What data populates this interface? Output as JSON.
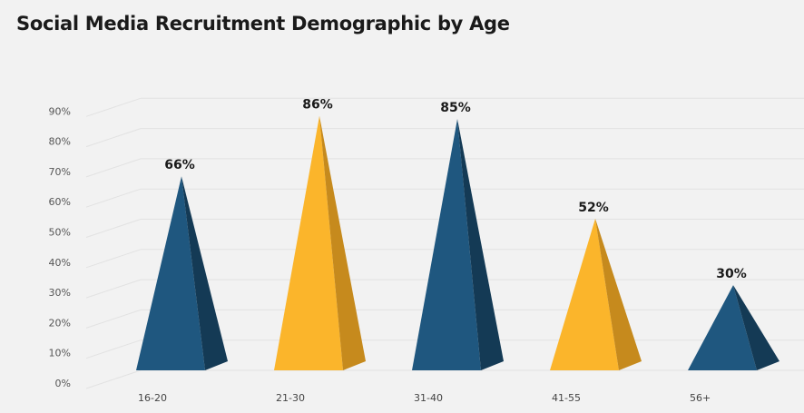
{
  "chart_data": {
    "type": "bar",
    "title": "Social Media Recruitment Demographic by Age",
    "categories": [
      "16-20",
      "21-30",
      "31-40",
      "41-55",
      "56+"
    ],
    "values": [
      66,
      86,
      85,
      52,
      30
    ],
    "value_labels": [
      "66%",
      "86%",
      "85%",
      "52%",
      "30%"
    ],
    "ylim": [
      0,
      90
    ],
    "yticks": [
      0,
      10,
      20,
      30,
      40,
      50,
      60,
      70,
      80,
      90
    ],
    "ytick_labels": [
      "0%",
      "10%",
      "20%",
      "30%",
      "40%",
      "50%",
      "60%",
      "70%",
      "80%",
      "90%"
    ],
    "grid": true,
    "colors": [
      "#1f577f",
      "#fbb52b",
      "#1f577f",
      "#fbb52b",
      "#1f577f"
    ],
    "shade_colors": [
      "#143a55",
      "#c68a1d",
      "#143a55",
      "#c68a1d",
      "#143a55"
    ]
  }
}
